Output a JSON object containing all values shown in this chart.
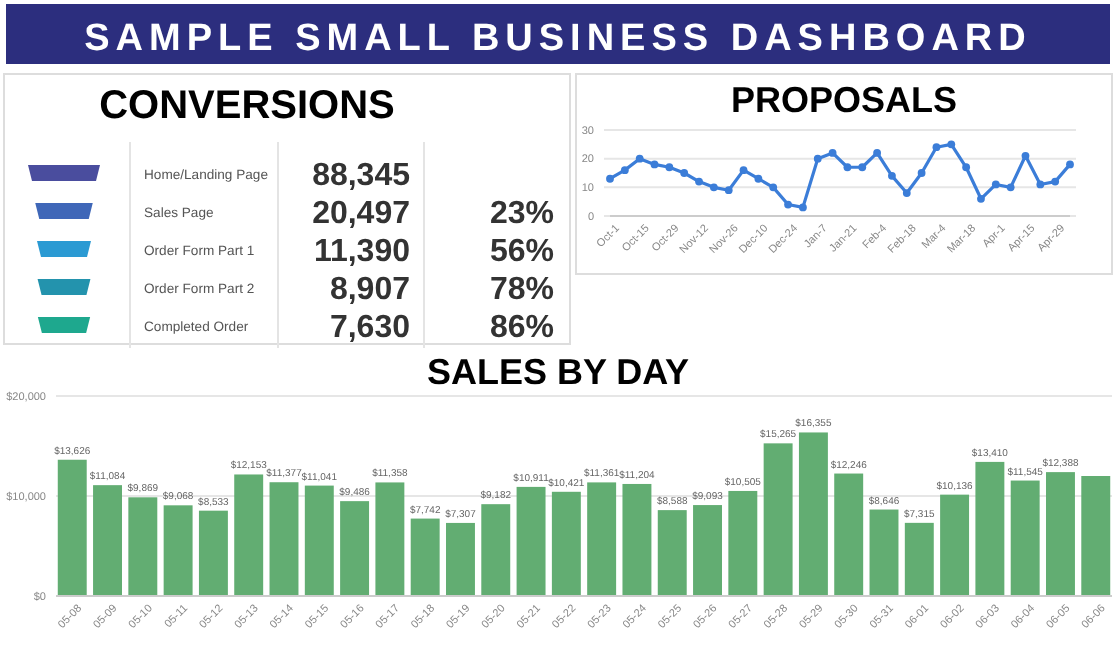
{
  "chart_data": [
    {
      "type": "other",
      "title": "SAMPLE SMALL BUSINESS DASHBOARD"
    },
    {
      "type": "other",
      "title": "CONVERSIONS",
      "categories": [
        "Home/Landing Page",
        "Sales Page",
        "Order Form Part 1",
        "Order Form Part 2",
        "Completed Order"
      ],
      "colors": [
        "#4a4d9e",
        "#3f67b8",
        "#2b9ad3",
        "#2393ad",
        "#1ea88e"
      ],
      "series": [
        {
          "values": [
            88345,
            20497,
            11390,
            8907,
            7630
          ],
          "value_labels": [
            "88,345",
            "20,497",
            "11,390",
            "8,907",
            "7,630"
          ]
        },
        {
          "values": [
            null,
            23,
            56,
            78,
            86
          ],
          "value_labels": [
            null,
            "23%",
            "56%",
            "78%",
            "86%"
          ]
        }
      ]
    },
    {
      "type": "line",
      "title": "PROPOSALS",
      "categories": [
        "Oct-1",
        null,
        "Oct-15",
        null,
        "Oct-29",
        null,
        "Nov-12",
        null,
        "Nov-26",
        null,
        "Dec-10",
        null,
        "Dec-24",
        null,
        "Jan-7",
        null,
        "Jan-21",
        null,
        "Feb-4",
        null,
        "Feb-18",
        null,
        "Mar-4",
        null,
        "Mar-18",
        null,
        "Apr-1",
        null,
        "Apr-15",
        null,
        "Apr-29",
        null
      ],
      "series": [
        {
          "color": "#3b7dd8",
          "values": [
            13,
            16,
            20,
            18,
            17,
            15,
            12,
            10,
            9,
            16,
            13,
            10,
            4,
            3,
            20,
            22,
            17,
            17,
            22,
            14,
            8,
            15,
            24,
            25,
            17,
            6,
            11,
            10,
            21,
            11,
            12,
            18
          ]
        }
      ],
      "ylim": [
        0,
        30
      ],
      "yticks": [
        0,
        10,
        20,
        30
      ],
      "grid": "y",
      "marker": "circle",
      "line_style": "solid"
    },
    {
      "type": "bar",
      "title": "SALES BY DAY",
      "categories": [
        "05-08",
        "05-09",
        "05-10",
        "05-11",
        "05-12",
        "05-13",
        "05-14",
        "05-15",
        "05-16",
        "05-17",
        "05-18",
        "05-19",
        "05-20",
        "05-21",
        "05-22",
        "05-23",
        "05-24",
        "05-25",
        "05-26",
        "05-27",
        "05-28",
        "05-29",
        "05-30",
        "05-31",
        "06-01",
        "06-02",
        "06-03",
        "06-04",
        "06-05",
        "06-06"
      ],
      "series": [
        {
          "color": "#62ad72",
          "values": [
            13626,
            11084,
            9869,
            9068,
            8533,
            12153,
            11377,
            11041,
            9486,
            11358,
            7742,
            7307,
            9182,
            10911,
            10421,
            11361,
            11204,
            8588,
            9093,
            10505,
            15265,
            16355,
            12246,
            8646,
            7315,
            10136,
            13410,
            11545,
            12388,
            12000
          ],
          "value_labels": [
            "$13,626",
            "$11,084",
            "$9,869",
            "$9,068",
            "$8,533",
            "$12,153",
            "$11,377",
            "$11,041",
            "$9,486",
            "$11,358",
            "$7,742",
            "$7,307",
            "$9,182",
            "$10,911",
            "$10,421",
            "$11,361",
            "$11,204",
            "$8,588",
            "$9,093",
            "$10,505",
            "$15,265",
            "$16,355",
            "$12,246",
            "$8,646",
            "$7,315",
            "$10,136",
            "$13,410",
            "$11,545",
            "$12,388",
            null
          ]
        }
      ],
      "ylim": [
        0,
        20000
      ],
      "yticks": [
        {
          "value": 0,
          "label": "$0"
        },
        {
          "value": 10000,
          "label": "$10,000"
        },
        {
          "value": 20000,
          "label": "$20,000"
        }
      ],
      "grid": "y"
    }
  ]
}
